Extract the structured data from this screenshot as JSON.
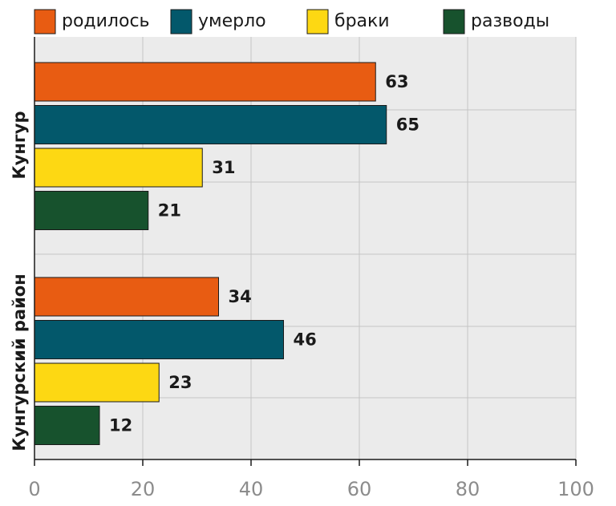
{
  "chart_data": {
    "type": "bar",
    "orientation": "horizontal",
    "groups": [
      "Кунгур",
      "Кунгурский район"
    ],
    "series": [
      {
        "name": "родилось",
        "color": "#e85c12",
        "values": [
          63,
          34
        ]
      },
      {
        "name": "умерло",
        "color": "#03586b",
        "values": [
          65,
          46
        ]
      },
      {
        "name": "браки",
        "color": "#fdd813",
        "values": [
          31,
          23
        ]
      },
      {
        "name": "разводы",
        "color": "#17522d",
        "values": [
          21,
          12
        ]
      }
    ],
    "xlim": [
      0,
      100
    ],
    "xticks": [
      "0",
      "20",
      "40",
      "60",
      "80",
      "100"
    ],
    "grid": true,
    "legend": "top",
    "plot_background": "#ebebeb"
  }
}
